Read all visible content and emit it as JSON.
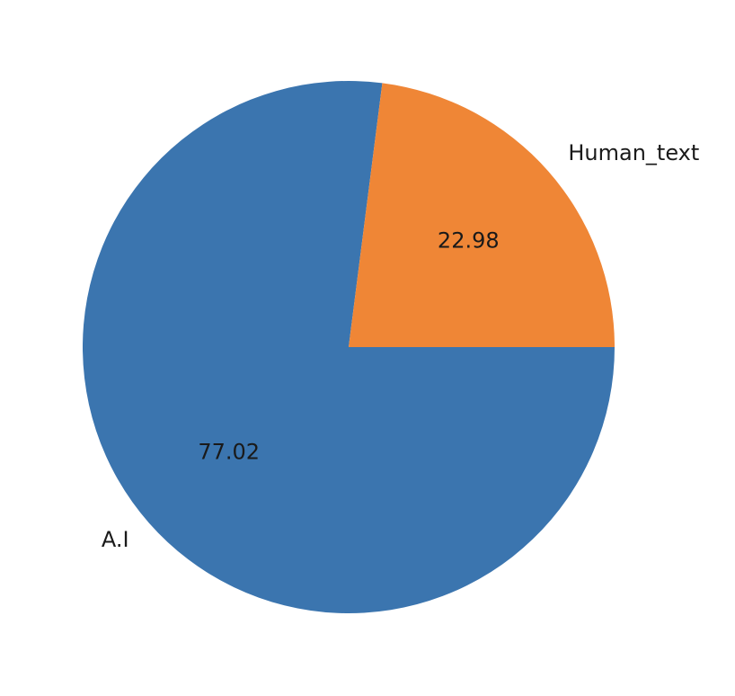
{
  "chart_data": {
    "type": "pie",
    "title": "",
    "start_angle_deg": 0,
    "direction": "clockwise",
    "slices": [
      {
        "label": "A.I",
        "value": 77.02,
        "pct_label": "77.02",
        "color": "#3b75af"
      },
      {
        "label": "Human_text",
        "value": 22.98,
        "pct_label": "22.98",
        "color": "#ef8636"
      }
    ]
  }
}
